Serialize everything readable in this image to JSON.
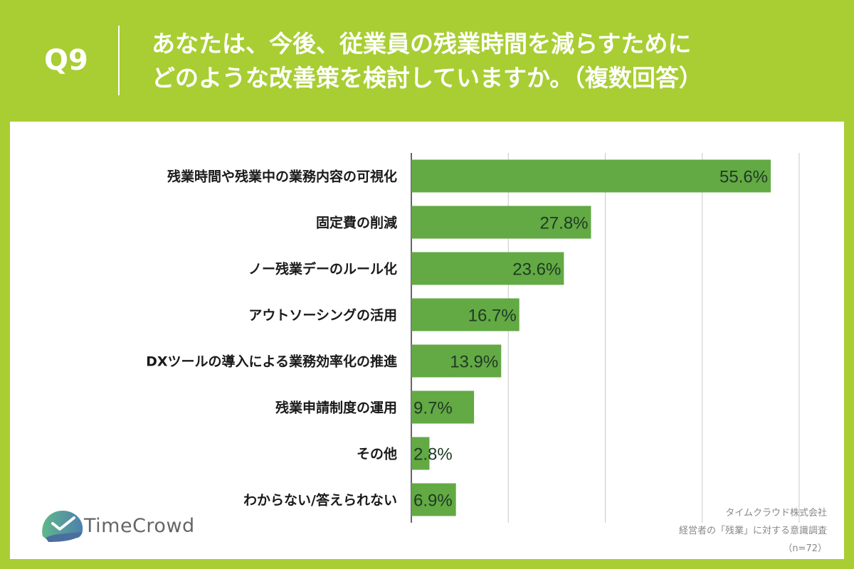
{
  "header": {
    "question_label": "Q9",
    "title_line1": "あなたは、今後、従業員の残業時間を減らすために",
    "title_line2": "どのような改善策を検討していますか。（複数回答）"
  },
  "logo": {
    "brand": "TimeCrowd"
  },
  "source": {
    "company": "タイムクラウド株式会社",
    "survey": "経営者の「残業」に対する意識調査",
    "sample": "（n=72）"
  },
  "colors": {
    "background": "#a8ce33",
    "bar": "#63a944",
    "label_text": "#1a1a1a",
    "value_text": "#1e3a24"
  },
  "chart_data": {
    "type": "bar",
    "orientation": "horizontal",
    "categories": [
      "残業時間や残業中の業務内容の可視化",
      "固定費の削減",
      "ノー残業デーのルール化",
      "アウトソーシングの活用",
      "DXツールの導入による業務効率化の推進",
      "残業申請制度の運用",
      "その他",
      "わからない/答えられない"
    ],
    "values": [
      55.6,
      27.8,
      23.6,
      16.7,
      13.9,
      9.7,
      2.8,
      6.9
    ],
    "value_labels": [
      "55.6%",
      "27.8%",
      "23.6%",
      "16.7%",
      "13.9%",
      "9.7%",
      "2.8%",
      "6.9%"
    ],
    "xlim": [
      0,
      60
    ],
    "gridlines": [
      15,
      30,
      45,
      60
    ],
    "grid": true
  }
}
